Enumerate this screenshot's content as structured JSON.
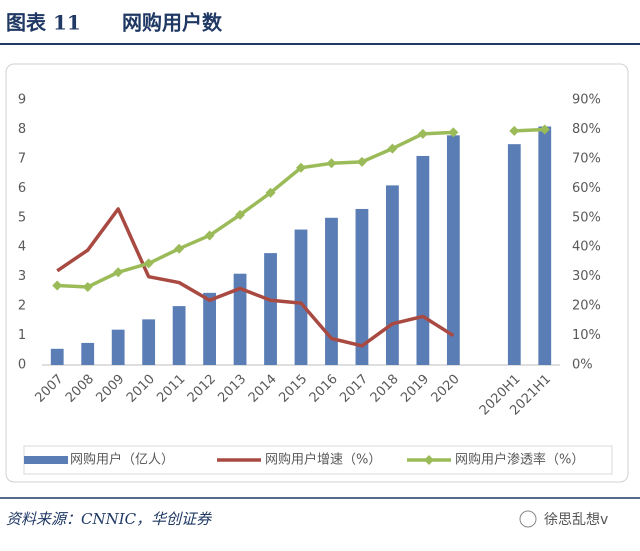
{
  "header": {
    "label": "图表 11",
    "title": "网购用户数"
  },
  "chart_data": {
    "type": "bar-line",
    "categories": [
      "2007",
      "2008",
      "2009",
      "2010",
      "2011",
      "2012",
      "2013",
      "2014",
      "2015",
      "2016",
      "2017",
      "2018",
      "2019",
      "2020",
      null,
      "2020H1",
      "2021H1"
    ],
    "series": [
      {
        "name": "网购用户（亿人）",
        "type": "bar",
        "color": "#5a7db6",
        "axis": "y",
        "values": [
          0.55,
          0.75,
          1.2,
          1.55,
          2.0,
          2.45,
          3.1,
          3.8,
          4.6,
          5.0,
          5.3,
          6.1,
          7.1,
          7.8,
          null,
          7.5,
          8.1
        ]
      },
      {
        "name": "网购用户增速（%）",
        "type": "line",
        "color": "#a94a42",
        "axis": "y2",
        "values": [
          32,
          39,
          53,
          30,
          28,
          22,
          26,
          22,
          21,
          9,
          6.5,
          14,
          16.5,
          10,
          null,
          null,
          null
        ]
      },
      {
        "name": "网购用户渗透率（%）",
        "type": "line",
        "color": "#9bbb59",
        "axis": "y2",
        "markers": true,
        "values": [
          27,
          26.5,
          31.5,
          34.5,
          39.5,
          44,
          51,
          58.5,
          67,
          68.5,
          69,
          73.5,
          78.5,
          79,
          null,
          79.5,
          80
        ]
      }
    ],
    "ylim": [
      0,
      9
    ],
    "yticks": [
      0,
      1,
      2,
      3,
      4,
      5,
      6,
      7,
      8,
      9
    ],
    "y2lim": [
      0,
      90
    ],
    "y2ticks": [
      {
        "value": 0,
        "label": "0%"
      },
      {
        "value": 10,
        "label": "10%"
      },
      {
        "value": 20,
        "label": "20%"
      },
      {
        "value": 30,
        "label": "30%"
      },
      {
        "value": 40,
        "label": "40%"
      },
      {
        "value": 50,
        "label": "50%"
      },
      {
        "value": 60,
        "label": "60%"
      },
      {
        "value": 70,
        "label": "70%"
      },
      {
        "value": 80,
        "label": "80%"
      },
      {
        "value": 90,
        "label": "90%"
      }
    ],
    "legend": "bottom"
  },
  "footer": {
    "source": "资料来源：CNNIC，华创证券",
    "watermark": "徐思乱想v"
  }
}
